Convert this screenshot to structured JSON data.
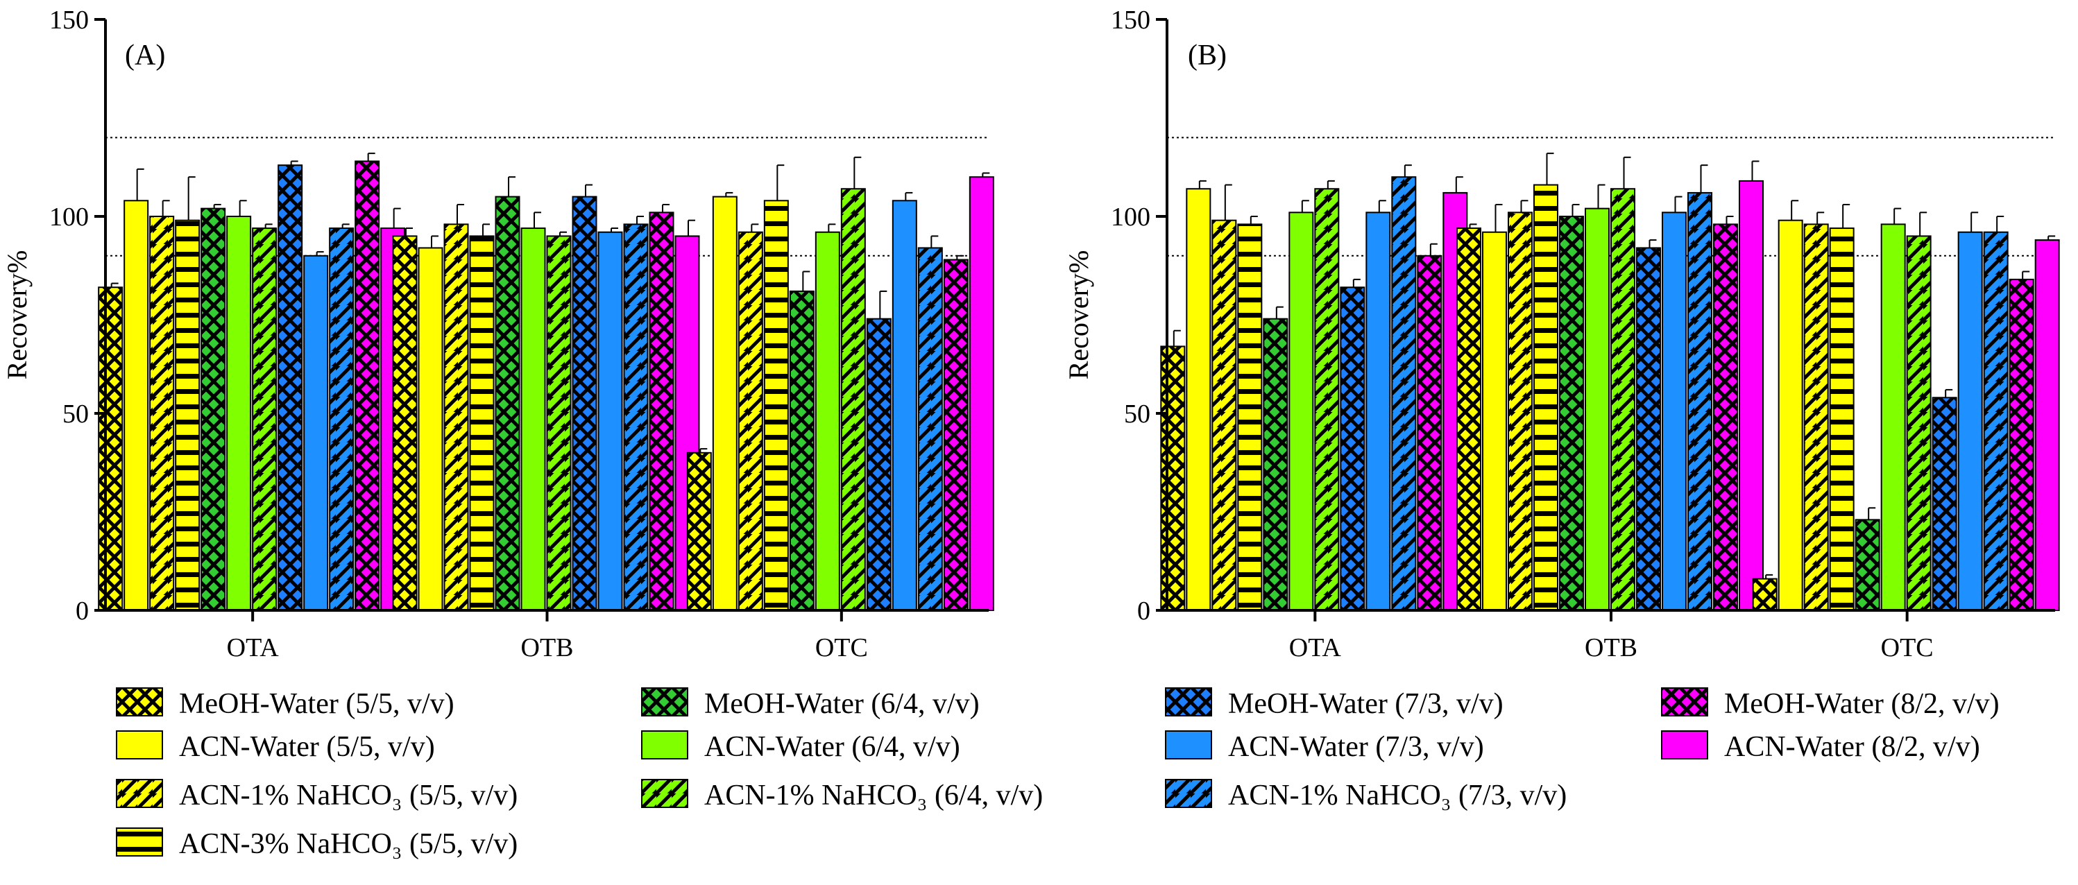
{
  "chart_data": [
    {
      "type": "bar",
      "panel_label": "(A)",
      "ylabel": "Recovery%",
      "ylim": [
        0,
        150
      ],
      "yticks": [
        0,
        50,
        100,
        150
      ],
      "reference_lines": [
        90,
        120
      ],
      "categories": [
        "OTA",
        "OTB",
        "OTC"
      ],
      "series": [
        {
          "name": "MeOH-Water (5/5, v/v)",
          "values": [
            82,
            95,
            40
          ],
          "errors": [
            1,
            2,
            1
          ]
        },
        {
          "name": "ACN-Water (5/5, v/v)",
          "values": [
            104,
            92,
            105
          ],
          "errors": [
            8,
            3,
            1
          ]
        },
        {
          "name": "ACN-1% NaHCO3 (5/5, v/v)",
          "values": [
            100,
            98,
            96
          ],
          "errors": [
            4,
            5,
            2
          ]
        },
        {
          "name": "ACN-3% NaHCO3 (5/5, v/v)",
          "values": [
            99,
            95,
            104
          ],
          "errors": [
            11,
            3,
            9
          ]
        },
        {
          "name": "MeOH-Water (6/4, v/v)",
          "values": [
            102,
            105,
            81
          ],
          "errors": [
            1,
            5,
            5
          ]
        },
        {
          "name": "ACN-Water (6/4, v/v)",
          "values": [
            100,
            97,
            96
          ],
          "errors": [
            4,
            4,
            2
          ]
        },
        {
          "name": "ACN-1% NaHCO3 (6/4, v/v)",
          "values": [
            97,
            95,
            107
          ],
          "errors": [
            1,
            1,
            8
          ]
        },
        {
          "name": "MeOH-Water (7/3, v/v)",
          "values": [
            113,
            105,
            74
          ],
          "errors": [
            1,
            3,
            7
          ]
        },
        {
          "name": "ACN-Water (7/3, v/v)",
          "values": [
            90,
            96,
            104
          ],
          "errors": [
            1,
            1,
            2
          ]
        },
        {
          "name": "ACN-1% NaHCO3 (7/3, v/v)",
          "values": [
            97,
            98,
            92
          ],
          "errors": [
            1,
            2,
            3
          ]
        },
        {
          "name": "MeOH-Water (8/2, v/v)",
          "values": [
            114,
            101,
            89
          ],
          "errors": [
            2,
            2,
            1
          ]
        },
        {
          "name": "ACN-Water (8/2, v/v)",
          "values": [
            97,
            95,
            110
          ],
          "errors": [
            5,
            4,
            1
          ]
        }
      ]
    },
    {
      "type": "bar",
      "panel_label": "(B)",
      "ylabel": "Recovery%",
      "ylim": [
        0,
        150
      ],
      "yticks": [
        0,
        50,
        100,
        150
      ],
      "reference_lines": [
        90,
        120
      ],
      "categories": [
        "OTA",
        "OTB",
        "OTC"
      ],
      "series": [
        {
          "name": "MeOH-Water (5/5, v/v)",
          "values": [
            67,
            97,
            8
          ],
          "errors": [
            4,
            1,
            1
          ]
        },
        {
          "name": "ACN-Water (5/5, v/v)",
          "values": [
            107,
            96,
            99
          ],
          "errors": [
            2,
            7,
            5
          ]
        },
        {
          "name": "ACN-1% NaHCO3 (5/5, v/v)",
          "values": [
            99,
            101,
            98
          ],
          "errors": [
            9,
            3,
            3
          ]
        },
        {
          "name": "ACN-3% NaHCO3 (5/5, v/v)",
          "values": [
            98,
            108,
            97
          ],
          "errors": [
            2,
            8,
            6
          ]
        },
        {
          "name": "MeOH-Water (6/4, v/v)",
          "values": [
            74,
            100,
            23
          ],
          "errors": [
            3,
            3,
            3
          ]
        },
        {
          "name": "ACN-Water (6/4, v/v)",
          "values": [
            101,
            102,
            98
          ],
          "errors": [
            3,
            6,
            4
          ]
        },
        {
          "name": "ACN-1% NaHCO3 (6/4, v/v)",
          "values": [
            107,
            107,
            95
          ],
          "errors": [
            2,
            8,
            6
          ]
        },
        {
          "name": "MeOH-Water (7/3, v/v)",
          "values": [
            82,
            92,
            54
          ],
          "errors": [
            2,
            2,
            2
          ]
        },
        {
          "name": "ACN-Water (7/3, v/v)",
          "values": [
            101,
            101,
            96
          ],
          "errors": [
            3,
            4,
            5
          ]
        },
        {
          "name": "ACN-1% NaHCO3 (7/3, v/v)",
          "values": [
            110,
            106,
            96
          ],
          "errors": [
            3,
            7,
            4
          ]
        },
        {
          "name": "MeOH-Water (8/2, v/v)",
          "values": [
            90,
            98,
            84
          ],
          "errors": [
            3,
            2,
            2
          ]
        },
        {
          "name": "ACN-Water (8/2, v/v)",
          "values": [
            106,
            109,
            94
          ],
          "errors": [
            4,
            5,
            1
          ]
        }
      ]
    }
  ],
  "legend": {
    "placement": "bottom",
    "items": [
      {
        "label": "MeOH-Water (5/5, v/v)",
        "color": "#FFFF00",
        "pattern": "crosshatch"
      },
      {
        "label": "ACN-Water (5/5, v/v)",
        "color": "#FFFF00",
        "pattern": "solid"
      },
      {
        "label": "ACN-1% NaHCO₃ (5/5, v/v)",
        "color": "#FFFF00",
        "pattern": "diagonal"
      },
      {
        "label": "ACN-3% NaHCO₃ (5/5, v/v)",
        "color": "#FFFF00",
        "pattern": "horizontal"
      },
      {
        "label": "MeOH-Water (6/4, v/v)",
        "color": "#33CC33",
        "pattern": "crosshatch"
      },
      {
        "label": "ACN-Water (6/4, v/v)",
        "color": "#7FFF00",
        "pattern": "solid"
      },
      {
        "label": "ACN-1% NaHCO₃ (6/4, v/v)",
        "color": "#7FFF00",
        "pattern": "diagonal"
      },
      {
        "label": "MeOH-Water (7/3, v/v)",
        "color": "#1E7FFF",
        "pattern": "crosshatch"
      },
      {
        "label": "ACN-Water (7/3, v/v)",
        "color": "#1E90FF",
        "pattern": "solid"
      },
      {
        "label": "ACN-1% NaHCO₃ (7/3, v/v)",
        "color": "#1E90FF",
        "pattern": "diagonal"
      },
      {
        "label": "MeOH-Water (8/2, v/v)",
        "color": "#FF00FF",
        "pattern": "crosshatch"
      },
      {
        "label": "ACN-Water (8/2, v/v)",
        "color": "#FF00FF",
        "pattern": "solid"
      }
    ]
  }
}
